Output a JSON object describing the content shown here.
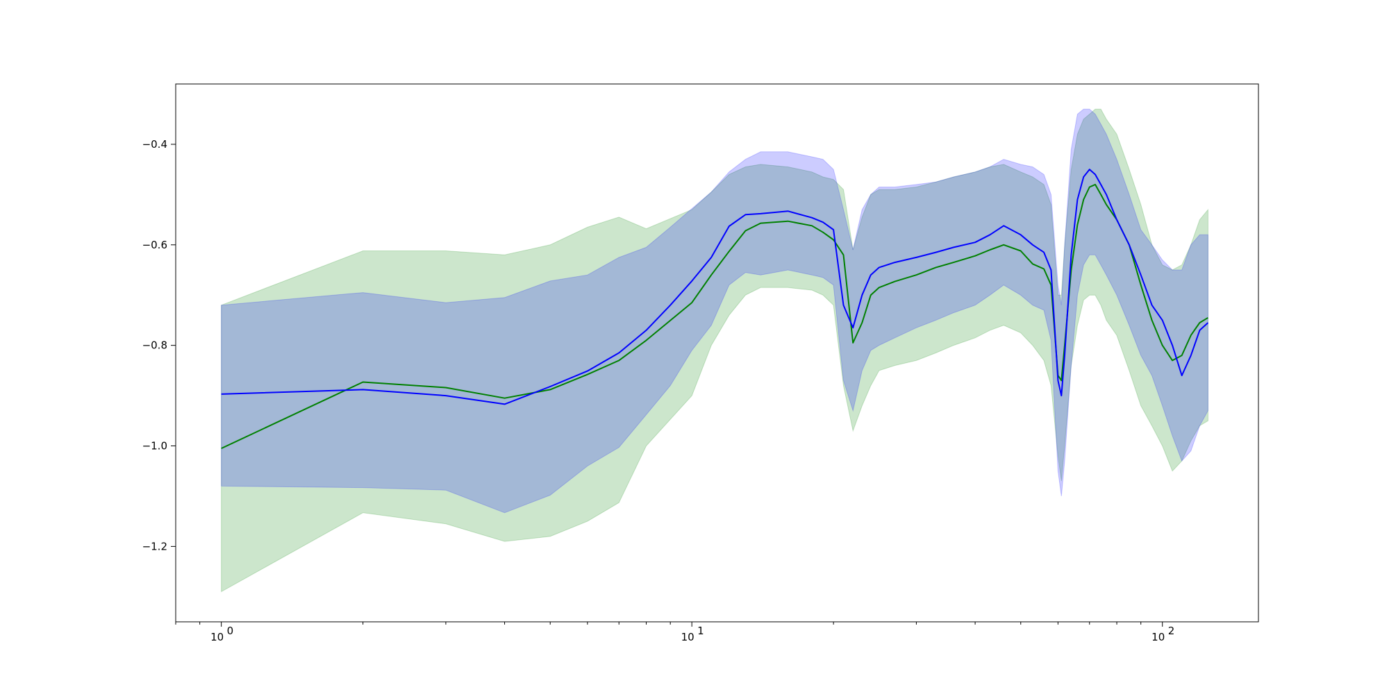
{
  "chart_data": {
    "type": "line",
    "title": "",
    "xlabel": "",
    "ylabel": "",
    "xscale": "log",
    "xlim": [
      0.8,
      160
    ],
    "ylim": [
      -1.35,
      -0.28
    ],
    "grid": false,
    "legend": "none",
    "x_ticks": [
      {
        "value": 1,
        "label": "10",
        "exp": "0"
      },
      {
        "value": 10,
        "label": "10",
        "exp": "1"
      },
      {
        "value": 100,
        "label": "10",
        "exp": "2"
      }
    ],
    "y_ticks": [
      {
        "value": -1.2,
        "label": "−1.2"
      },
      {
        "value": -1.0,
        "label": "−1.0"
      },
      {
        "value": -0.8,
        "label": "−0.8"
      },
      {
        "value": -0.6,
        "label": "−0.6"
      },
      {
        "value": -0.4,
        "label": "−0.4"
      }
    ],
    "series": [
      {
        "color": "#008000",
        "band_color": "#008000",
        "x": [
          1,
          2,
          3,
          4,
          5,
          6,
          7,
          8,
          10,
          11,
          12,
          13,
          14,
          16,
          18,
          19,
          20,
          21,
          22,
          23,
          24,
          25,
          27,
          30,
          33,
          36,
          40,
          43,
          46,
          50,
          53,
          56,
          58,
          60,
          61,
          62,
          64,
          66,
          68,
          70,
          72,
          74,
          76,
          80,
          85,
          90,
          95,
          100,
          105,
          110,
          115,
          120,
          125
        ],
        "y": [
          -1.005,
          -0.873,
          -0.884,
          -0.905,
          -0.888,
          -0.858,
          -0.83,
          -0.79,
          -0.715,
          -0.66,
          -0.613,
          -0.572,
          -0.557,
          -0.553,
          -0.562,
          -0.575,
          -0.59,
          -0.62,
          -0.795,
          -0.755,
          -0.7,
          -0.685,
          -0.673,
          -0.66,
          -0.645,
          -0.635,
          -0.622,
          -0.61,
          -0.6,
          -0.612,
          -0.638,
          -0.648,
          -0.68,
          -0.86,
          -0.87,
          -0.8,
          -0.65,
          -0.56,
          -0.51,
          -0.485,
          -0.48,
          -0.5,
          -0.52,
          -0.55,
          -0.6,
          -0.68,
          -0.75,
          -0.8,
          -0.83,
          -0.82,
          -0.78,
          -0.755,
          -0.745
        ],
        "upper": [
          -0.72,
          -0.612,
          -0.612,
          -0.62,
          -0.6,
          -0.565,
          -0.545,
          -0.568,
          -0.53,
          -0.495,
          -0.46,
          -0.445,
          -0.44,
          -0.445,
          -0.455,
          -0.465,
          -0.47,
          -0.49,
          -0.61,
          -0.545,
          -0.5,
          -0.49,
          -0.49,
          -0.485,
          -0.475,
          -0.465,
          -0.455,
          -0.445,
          -0.44,
          -0.455,
          -0.465,
          -0.48,
          -0.52,
          -0.7,
          -0.7,
          -0.6,
          -0.45,
          -0.38,
          -0.35,
          -0.34,
          -0.33,
          -0.33,
          -0.35,
          -0.38,
          -0.45,
          -0.52,
          -0.6,
          -0.64,
          -0.65,
          -0.64,
          -0.6,
          -0.55,
          -0.53
        ],
        "lower": [
          -1.29,
          -1.133,
          -1.155,
          -1.19,
          -1.18,
          -1.15,
          -1.113,
          -1.0,
          -0.9,
          -0.8,
          -0.74,
          -0.7,
          -0.685,
          -0.685,
          -0.69,
          -0.7,
          -0.72,
          -0.88,
          -0.97,
          -0.92,
          -0.88,
          -0.85,
          -0.84,
          -0.83,
          -0.815,
          -0.8,
          -0.785,
          -0.77,
          -0.76,
          -0.775,
          -0.8,
          -0.83,
          -0.88,
          -1.02,
          -1.07,
          -1.0,
          -0.84,
          -0.76,
          -0.71,
          -0.7,
          -0.7,
          -0.72,
          -0.75,
          -0.78,
          -0.85,
          -0.92,
          -0.96,
          -1.0,
          -1.05,
          -1.03,
          -0.99,
          -0.96,
          -0.95
        ]
      },
      {
        "color": "#0000ff",
        "band_color": "#0000ff",
        "x": [
          1,
          2,
          3,
          4,
          5,
          6,
          7,
          8,
          9,
          10,
          11,
          12,
          13,
          14,
          16,
          18,
          19,
          20,
          21,
          22,
          23,
          24,
          25,
          27,
          30,
          33,
          36,
          40,
          43,
          46,
          50,
          53,
          56,
          58,
          60,
          61,
          62,
          64,
          66,
          68,
          70,
          72,
          74,
          76,
          80,
          85,
          90,
          95,
          100,
          105,
          110,
          115,
          120,
          125
        ],
        "y": [
          -0.897,
          -0.888,
          -0.9,
          -0.917,
          -0.882,
          -0.851,
          -0.815,
          -0.77,
          -0.72,
          -0.672,
          -0.625,
          -0.563,
          -0.54,
          -0.538,
          -0.533,
          -0.546,
          -0.555,
          -0.57,
          -0.72,
          -0.765,
          -0.7,
          -0.66,
          -0.645,
          -0.635,
          -0.625,
          -0.615,
          -0.605,
          -0.595,
          -0.58,
          -0.562,
          -0.58,
          -0.6,
          -0.615,
          -0.65,
          -0.87,
          -0.9,
          -0.82,
          -0.62,
          -0.51,
          -0.465,
          -0.45,
          -0.46,
          -0.48,
          -0.5,
          -0.55,
          -0.6,
          -0.66,
          -0.72,
          -0.75,
          -0.8,
          -0.86,
          -0.82,
          -0.77,
          -0.755
        ],
        "upper": [
          -0.72,
          -0.695,
          -0.715,
          -0.705,
          -0.672,
          -0.66,
          -0.625,
          -0.605,
          -0.565,
          -0.528,
          -0.495,
          -0.455,
          -0.43,
          -0.415,
          -0.415,
          -0.425,
          -0.43,
          -0.45,
          -0.53,
          -0.61,
          -0.53,
          -0.5,
          -0.485,
          -0.485,
          -0.48,
          -0.475,
          -0.465,
          -0.455,
          -0.445,
          -0.43,
          -0.44,
          -0.445,
          -0.46,
          -0.5,
          -0.68,
          -0.72,
          -0.6,
          -0.41,
          -0.34,
          -0.33,
          -0.33,
          -0.34,
          -0.36,
          -0.38,
          -0.43,
          -0.5,
          -0.57,
          -0.6,
          -0.63,
          -0.65,
          -0.65,
          -0.6,
          -0.58,
          -0.58
        ],
        "lower": [
          -1.08,
          -1.083,
          -1.088,
          -1.133,
          -1.098,
          -1.04,
          -1.003,
          -0.938,
          -0.88,
          -0.81,
          -0.76,
          -0.68,
          -0.655,
          -0.66,
          -0.65,
          -0.66,
          -0.665,
          -0.68,
          -0.87,
          -0.93,
          -0.85,
          -0.81,
          -0.8,
          -0.785,
          -0.765,
          -0.75,
          -0.735,
          -0.72,
          -0.7,
          -0.68,
          -0.7,
          -0.72,
          -0.73,
          -0.79,
          -1.05,
          -1.1,
          -1.03,
          -0.84,
          -0.7,
          -0.64,
          -0.62,
          -0.62,
          -0.64,
          -0.66,
          -0.7,
          -0.76,
          -0.82,
          -0.86,
          -0.92,
          -0.98,
          -1.03,
          -1.01,
          -0.96,
          -0.93
        ]
      }
    ]
  }
}
